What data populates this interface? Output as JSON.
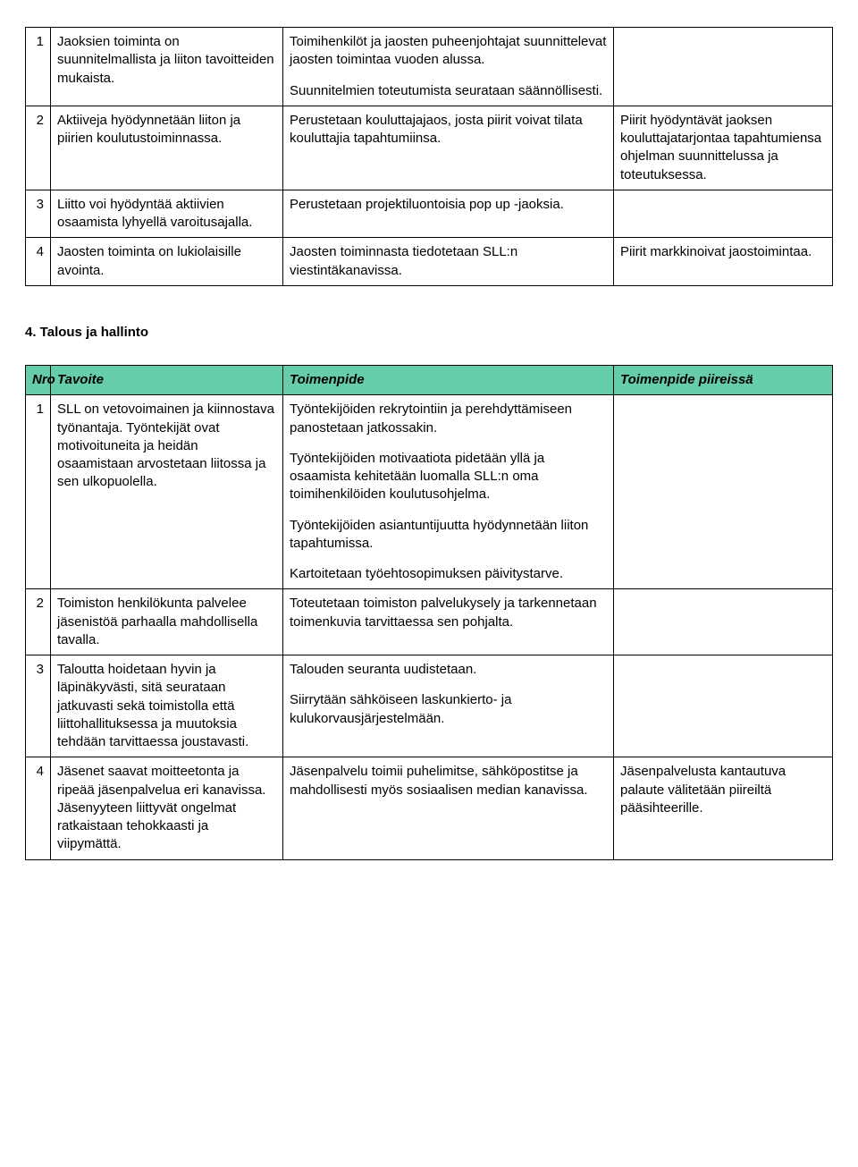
{
  "colors": {
    "header_bg": "#66cdaa",
    "border": "#000000",
    "text": "#000000",
    "page_bg": "#ffffff"
  },
  "typography": {
    "font_family": "Arial, Helvetica, sans-serif",
    "base_fontsize_pt": 11,
    "header_italic": true,
    "header_bold": true
  },
  "table1": {
    "rows": [
      {
        "n": "1",
        "tavoite": "Jaoksien toiminta on suunnitelmallista ja liiton tavoitteiden mukaista.",
        "toimenpide": [
          "Toimihenkilöt ja jaosten puheenjohtajat suunnittelevat jaosten toimintaa vuoden alussa.",
          "Suunnitelmien toteutumista seurataan säännöllisesti."
        ],
        "piireissa": ""
      },
      {
        "n": "2",
        "tavoite": "Aktiiveja hyödynnetään liiton ja piirien koulutustoiminnassa.",
        "toimenpide": [
          "Perustetaan kouluttajajaos, josta piirit voivat tilata kouluttajia tapahtumiinsa."
        ],
        "piireissa": "Piirit hyödyntävät jaoksen kouluttajatarjontaa tapahtumiensa ohjelman suunnittelussa ja toteutuksessa."
      },
      {
        "n": "3",
        "tavoite": "Liitto voi hyödyntää aktiivien osaamista lyhyellä varoitusajalla.",
        "toimenpide": [
          "Perustetaan projektiluontoisia pop up -jaoksia."
        ],
        "piireissa": ""
      },
      {
        "n": "4",
        "tavoite": "Jaosten toiminta on lukiolaisille avointa.",
        "toimenpide": [
          "Jaosten toiminnasta tiedotetaan SLL:n viestintäkanavissa."
        ],
        "piireissa": "Piirit markkinoivat jaostoimintaa."
      }
    ]
  },
  "section2_title": "4. Talous ja hallinto",
  "table2": {
    "header": {
      "n": "Nro",
      "tavoite": "Tavoite",
      "toimenpide": "Toimenpide",
      "piireissa": "Toimenpide piireissä"
    },
    "rows": [
      {
        "n": "1",
        "tavoite": "SLL on vetovoimainen ja kiinnostava työnantaja. Työntekijät ovat motivoituneita ja heidän osaamistaan arvostetaan liitossa ja sen ulkopuolella.",
        "toimenpide": [
          "Työntekijöiden rekrytointiin ja perehdyttämiseen panostetaan jatkossakin.",
          "Työntekijöiden motivaatiota pidetään yllä ja osaamista kehitetään luomalla SLL:n oma toimihenkilöiden koulutusohjelma.",
          "Työntekijöiden asiantuntijuutta hyödynnetään liiton tapahtumissa.",
          "Kartoitetaan työehtosopimuksen päivitystarve."
        ],
        "piireissa": ""
      },
      {
        "n": "2",
        "tavoite": "Toimiston henkilökunta palvelee jäsenistöä parhaalla mahdollisella tavalla.",
        "toimenpide": [
          "Toteutetaan toimiston palvelukysely ja tarkennetaan toimenkuvia tarvittaessa sen pohjalta."
        ],
        "piireissa": ""
      },
      {
        "n": "3",
        "tavoite": "Taloutta hoidetaan hyvin ja läpinäkyvästi, sitä seurataan jatkuvasti sekä toimistolla että liittohallituksessa ja muutoksia tehdään tarvittaessa joustavasti.",
        "toimenpide": [
          "Talouden seuranta uudistetaan.",
          "Siirrytään sähköiseen laskunkierto- ja kulukorvausjärjestelmään."
        ],
        "piireissa": ""
      },
      {
        "n": "4",
        "tavoite": "Jäsenet saavat moitteetonta ja ripeää jäsenpalvelua eri kanavissa. Jäsenyyteen liittyvät ongelmat ratkaistaan tehokkaasti ja viipymättä.",
        "toimenpide": [
          "Jäsenpalvelu toimii puhelimitse, sähköpostitse ja mahdollisesti myös sosiaalisen median kanavissa."
        ],
        "piireissa": "Jäsenpalvelusta kantautuva palaute välitetään piireiltä pääsihteerille."
      }
    ]
  }
}
